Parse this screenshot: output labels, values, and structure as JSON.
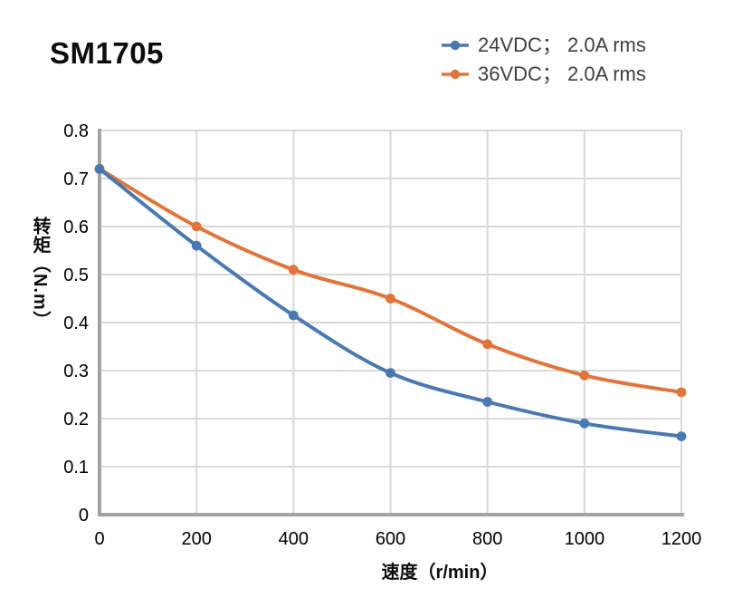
{
  "title": "SM1705",
  "legend": {
    "items": [
      {
        "label": "24VDC； 2.0A rms",
        "color": "#4A79B2"
      },
      {
        "label": "36VDC； 2.0A rms",
        "color": "#E0753B"
      }
    ]
  },
  "chart_data": {
    "type": "line",
    "title": "SM1705",
    "xlabel": "速度（r/min）",
    "ylabel": "转矩（N.m）",
    "x": [
      0,
      200,
      400,
      600,
      800,
      1000,
      1200
    ],
    "series": [
      {
        "name": "24VDC； 2.0A rms",
        "slug": "24vdc",
        "color": "#4A79B2",
        "values": [
          0.72,
          0.56,
          0.415,
          0.295,
          0.235,
          0.19,
          0.163
        ]
      },
      {
        "name": "36VDC； 2.0A rms",
        "slug": "36vdc",
        "color": "#E0753B",
        "values": [
          0.72,
          0.6,
          0.51,
          0.45,
          0.355,
          0.29,
          0.255
        ]
      }
    ],
    "xlim": [
      0,
      1200
    ],
    "ylim": [
      0,
      0.8
    ],
    "xticks": [
      "0",
      "200",
      "400",
      "600",
      "800",
      "1000",
      "1200"
    ],
    "yticks": [
      "0",
      "0.1",
      "0.2",
      "0.3",
      "0.4",
      "0.5",
      "0.6",
      "0.7",
      "0.8"
    ],
    "grid": true,
    "smooth": true,
    "legend_position": "top-right"
  },
  "colors": {
    "grid": "#D9D9D9",
    "axis": "#A3A3A3",
    "tick_text": "#000000",
    "legend_text": "#404040",
    "title_text": "#0D0D0D"
  }
}
